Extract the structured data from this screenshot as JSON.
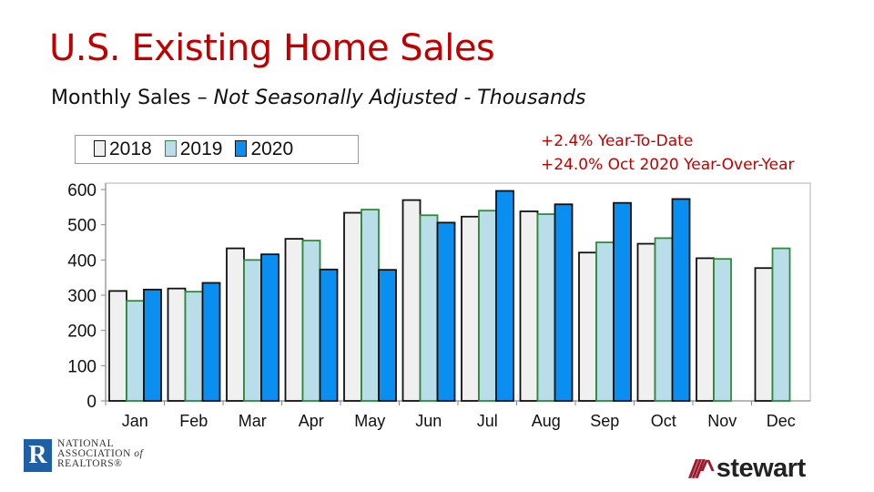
{
  "title": "U.S. Existing Home Sales",
  "subtitle": {
    "main": "Monthly Sales – ",
    "italic": "Not Seasonally Adjusted - Thousands"
  },
  "notes": [
    "+2.4% Year-To-Date",
    "+24.0% Oct 2020 Year-Over-Year"
  ],
  "colors": {
    "title": "#c00000",
    "s2018": "#f0f0f0",
    "s2019": "#b9dde9",
    "s2020": "#0a8ef0",
    "s2019_border": "#2e8b3a"
  },
  "chart_data": {
    "type": "bar",
    "categories": [
      "Jan",
      "Feb",
      "Mar",
      "Apr",
      "May",
      "Jun",
      "Jul",
      "Aug",
      "Sep",
      "Oct",
      "Nov",
      "Dec"
    ],
    "series": [
      {
        "name": "2018",
        "values": [
          312,
          319,
          433,
          460,
          534,
          570,
          523,
          538,
          421,
          446,
          405,
          377
        ]
      },
      {
        "name": "2019",
        "values": [
          284,
          310,
          400,
          455,
          543,
          527,
          540,
          530,
          450,
          462,
          403,
          433
        ]
      },
      {
        "name": "2020",
        "values": [
          316,
          335,
          416,
          373,
          372,
          506,
          596,
          558,
          562,
          573,
          null,
          null
        ]
      }
    ],
    "ylim": [
      0,
      620
    ],
    "yticks": [
      0,
      100,
      200,
      300,
      400,
      500,
      600
    ],
    "grid": false,
    "legend": "top-left"
  },
  "logos": {
    "nar": [
      "NATIONAL",
      "ASSOCIATION of",
      "REALTORS®"
    ],
    "stewart": "stewart"
  }
}
